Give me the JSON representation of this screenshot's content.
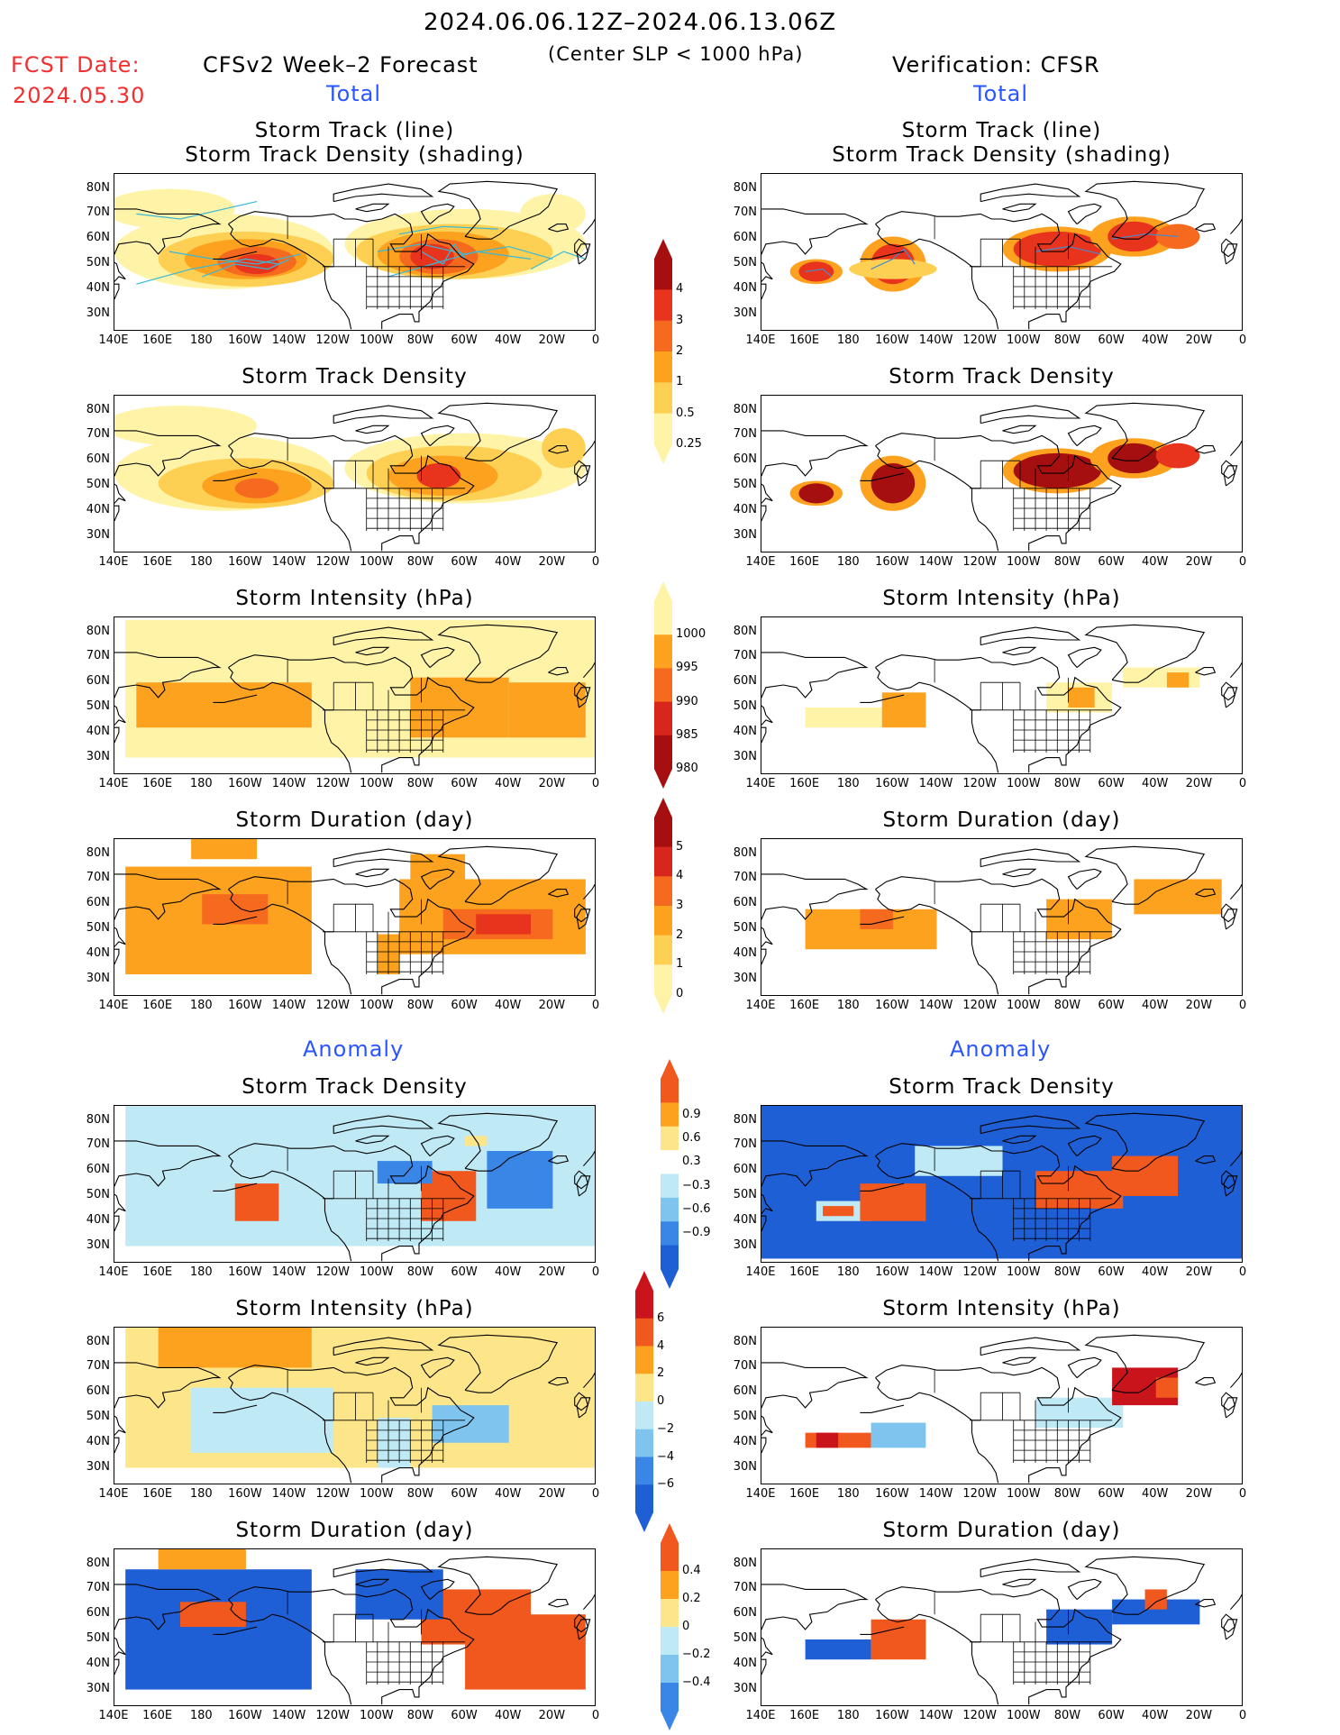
{
  "header": {
    "period": "2024.06.06.12Z–2024.06.13.06Z",
    "criterion": "(Center SLP < 1000 hPa)",
    "fcst_label": "FCST Date:",
    "fcst_date": "2024.05.30",
    "left_title": "CFSv2 Week–2 Forecast",
    "right_title": "Verification: CFSR",
    "total_label": "Total",
    "anomaly_label": "Anomaly"
  },
  "axes": {
    "lat_labels": [
      "80N",
      "70N",
      "60N",
      "50N",
      "40N",
      "30N"
    ],
    "lon_labels": [
      "140E",
      "160E",
      "180",
      "160W",
      "140W",
      "120W",
      "100W",
      "80W",
      "60W",
      "40W",
      "20W",
      "0"
    ]
  },
  "panels": [
    {
      "id": "track",
      "title_line1": "Storm Track (line)",
      "title_line2": "Storm Track Density (shading)"
    },
    {
      "id": "density",
      "title": "Storm Track Density"
    },
    {
      "id": "intensity",
      "title": "Storm Intensity (hPa)"
    },
    {
      "id": "duration",
      "title": "Storm Duration (day)"
    },
    {
      "id": "a_density",
      "title": "Storm Track Density"
    },
    {
      "id": "a_intensity",
      "title": "Storm Intensity (hPa)"
    },
    {
      "id": "a_duration",
      "title": "Storm Duration (day)"
    }
  ],
  "colorbars": {
    "density": {
      "labels": [
        "4",
        "3",
        "2",
        "1",
        "0.5",
        "0.25"
      ],
      "colors": [
        "#a50f0f",
        "#e8341c",
        "#f56a1e",
        "#fca21e",
        "#fdd054",
        "#fff3a8"
      ]
    },
    "intensity": {
      "labels": [
        "1000",
        "995",
        "990",
        "985",
        "980"
      ],
      "colors": [
        "#fff3a8",
        "#fca21e",
        "#f56a1e",
        "#d7261b",
        "#a50f0f"
      ]
    },
    "duration": {
      "labels": [
        "5",
        "4",
        "3",
        "2",
        "1",
        "0"
      ],
      "colors": [
        "#a50f0f",
        "#d7261b",
        "#f56a1e",
        "#fca21e",
        "#fdd054",
        "#fff3a8"
      ]
    },
    "a_density": {
      "labels": [
        "0.9",
        "0.6",
        "0.3",
        "−0.3",
        "−0.6",
        "−0.9"
      ],
      "colors": [
        "#f0581e",
        "#fca21e",
        "#fde68a",
        "#ffffff",
        "#bfe9f5",
        "#7fc4ee",
        "#3a86e6",
        "#1f5fd6"
      ]
    },
    "a_intensity": {
      "labels": [
        "6",
        "4",
        "2",
        "0",
        "−2",
        "−4",
        "−6"
      ],
      "colors": [
        "#c8141a",
        "#f0581e",
        "#fca21e",
        "#fde68a",
        "#bfe9f5",
        "#7fc4ee",
        "#3a86e6",
        "#1f5fd6"
      ]
    },
    "a_duration": {
      "labels": [
        "0.4",
        "0.2",
        "0",
        "−0.2",
        "−0.4"
      ],
      "colors": [
        "#f0581e",
        "#fca21e",
        "#fde68a",
        "#bfe9f5",
        "#7fc4ee",
        "#3a86e6"
      ]
    }
  }
}
